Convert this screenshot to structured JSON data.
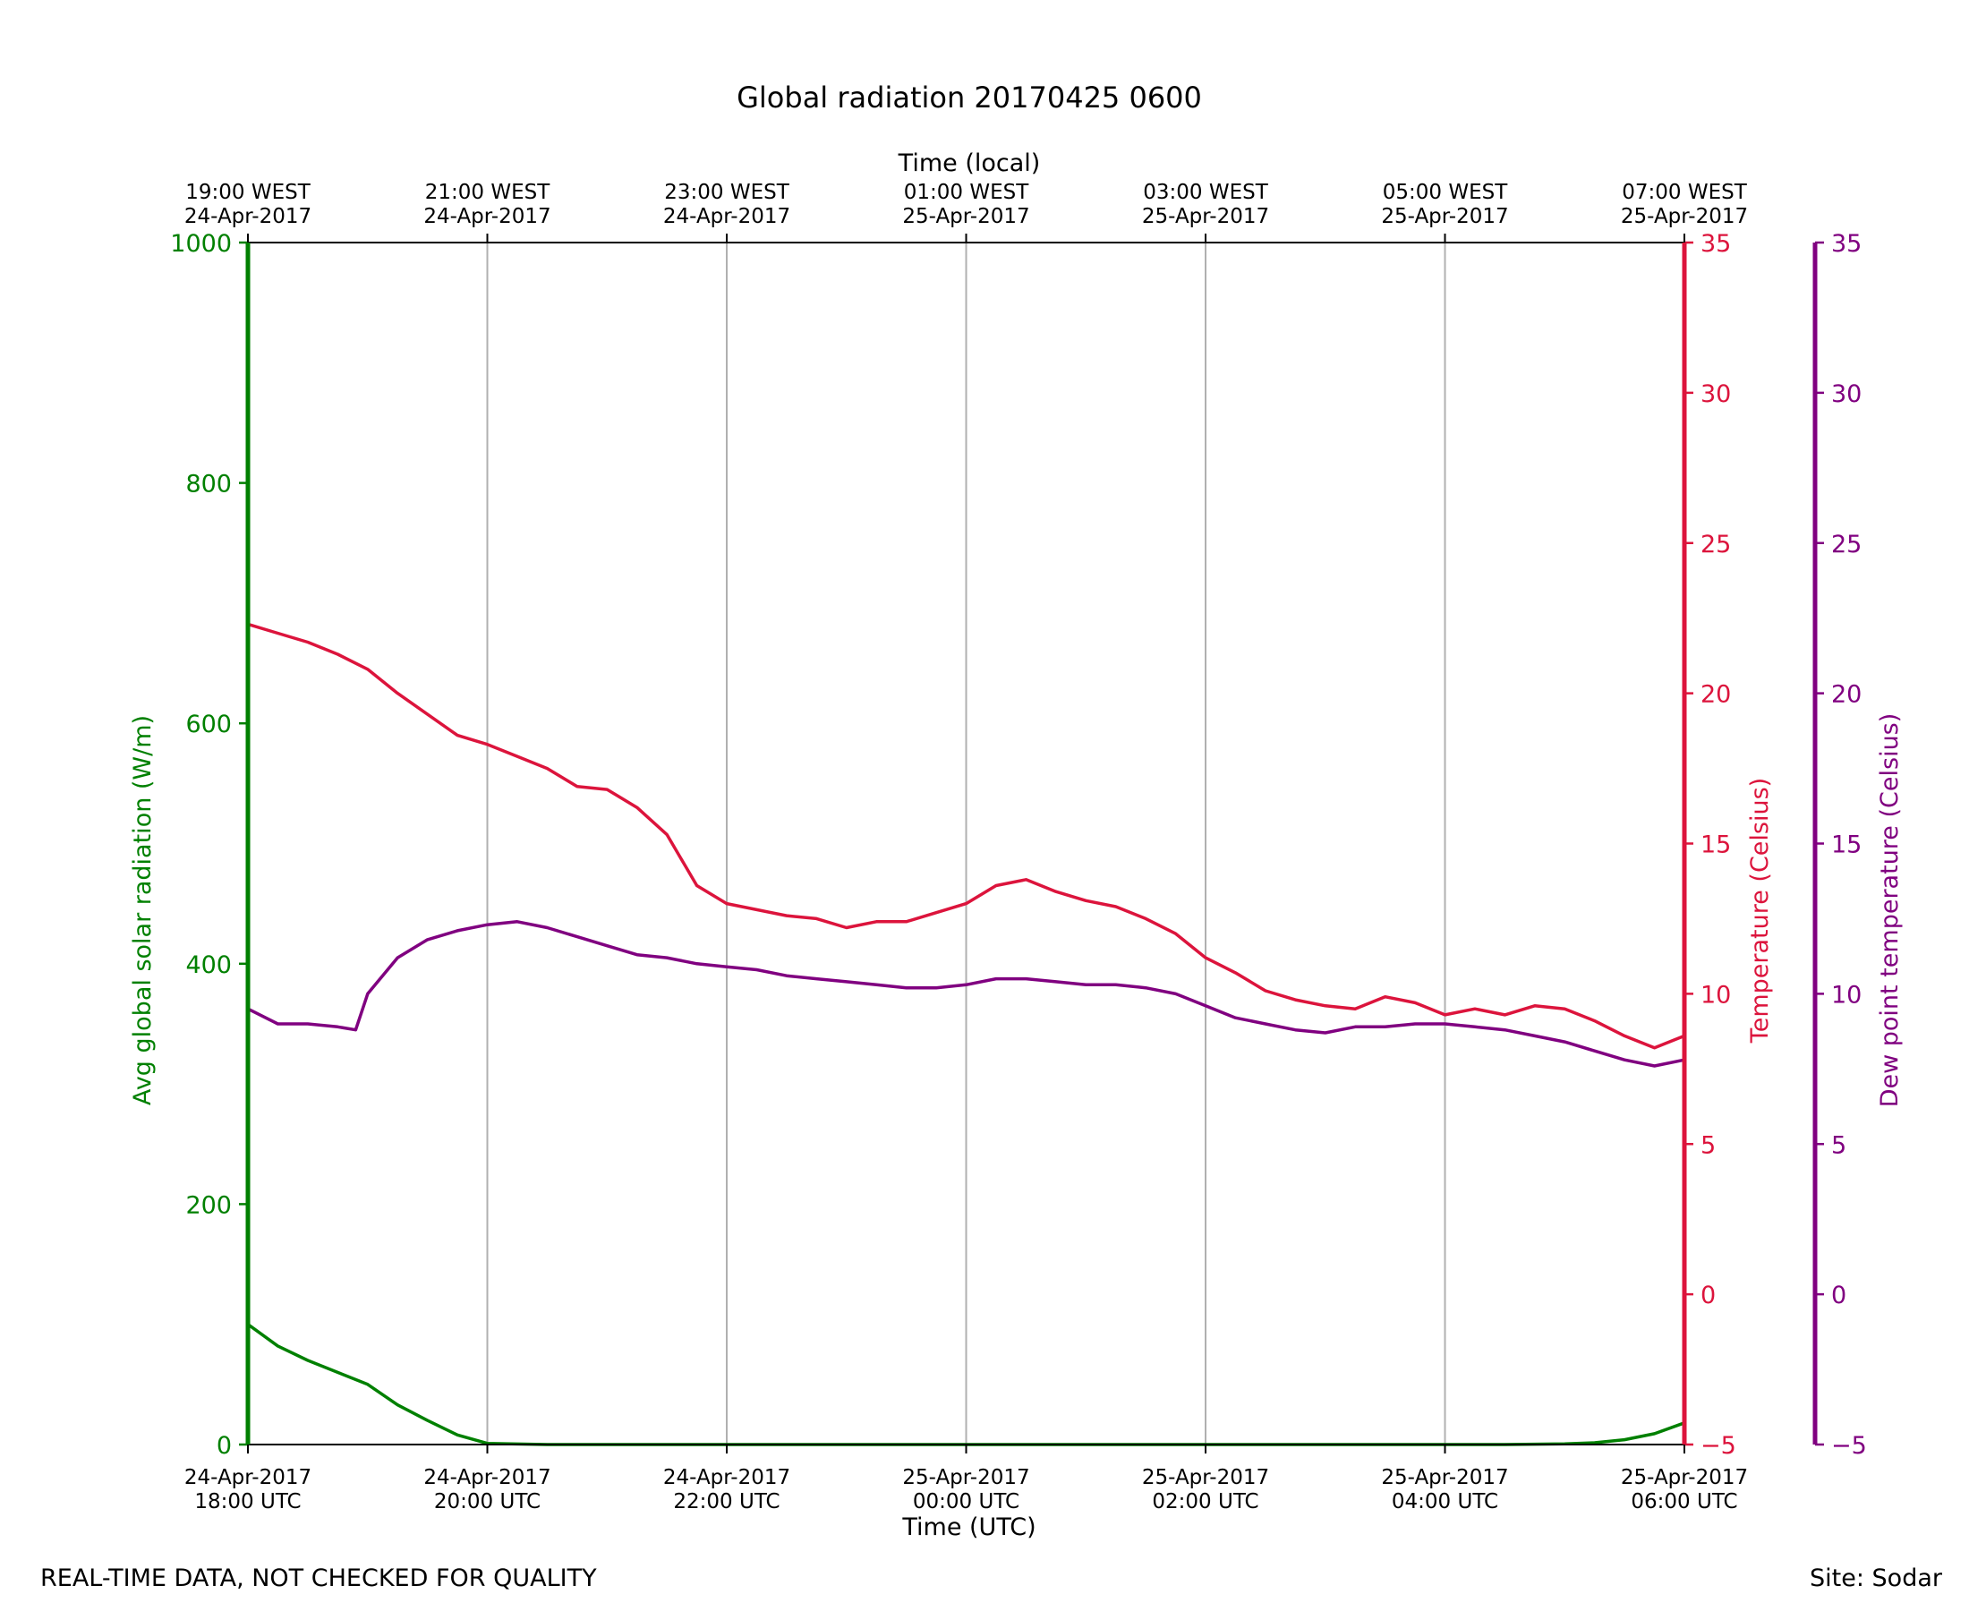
{
  "chart_data": {
    "type": "line",
    "title": "Global radiation 20170425 0600",
    "xlabel_bottom": "Time (UTC)",
    "xlabel_top": "Time (local)",
    "x_range_hours_utc": [
      "24-Apr-2017 18:00",
      "25-Apr-2017 06:00"
    ],
    "bottom_ticks": [
      {
        "date": "24-Apr-2017",
        "time": "18:00 UTC"
      },
      {
        "date": "24-Apr-2017",
        "time": "20:00 UTC"
      },
      {
        "date": "24-Apr-2017",
        "time": "22:00 UTC"
      },
      {
        "date": "25-Apr-2017",
        "time": "00:00 UTC"
      },
      {
        "date": "25-Apr-2017",
        "time": "02:00 UTC"
      },
      {
        "date": "25-Apr-2017",
        "time": "04:00 UTC"
      },
      {
        "date": "25-Apr-2017",
        "time": "06:00 UTC"
      }
    ],
    "top_ticks": [
      {
        "time": "19:00 WEST",
        "date": "24-Apr-2017"
      },
      {
        "time": "21:00 WEST",
        "date": "24-Apr-2017"
      },
      {
        "time": "23:00 WEST",
        "date": "24-Apr-2017"
      },
      {
        "time": "01:00 WEST",
        "date": "25-Apr-2017"
      },
      {
        "time": "03:00 WEST",
        "date": "25-Apr-2017"
      },
      {
        "time": "05:00 WEST",
        "date": "25-Apr-2017"
      },
      {
        "time": "07:00 WEST",
        "date": "25-Apr-2017"
      }
    ],
    "grid": "vertical",
    "axes": {
      "radiation": {
        "label": "Avg global solar radiation (W/m)",
        "range": [
          0,
          1000
        ],
        "ticks": [
          "0",
          "200",
          "400",
          "600",
          "800",
          "1000"
        ],
        "color": "#008000"
      },
      "temperature": {
        "label": "Temperature (Celsius)",
        "range": [
          -5,
          35
        ],
        "ticks": [
          "−5",
          "0",
          "5",
          "10",
          "15",
          "20",
          "25",
          "30",
          "35"
        ],
        "color": "#dc143c"
      },
      "dewpoint": {
        "label": "Dew point temperature (Celsius)",
        "range": [
          -5,
          35
        ],
        "ticks": [
          "−5",
          "0",
          "5",
          "10",
          "15",
          "20",
          "25",
          "30",
          "35"
        ],
        "color": "#800080"
      }
    },
    "series": [
      {
        "axis": "radiation",
        "color": "#008000",
        "x_hours_since_1800utc": [
          0,
          0.25,
          0.5,
          0.75,
          1.0,
          1.25,
          1.5,
          1.75,
          2.0,
          2.5,
          3,
          4,
          5,
          6,
          7,
          8,
          9,
          10,
          10.5,
          11,
          11.25,
          11.5,
          11.75,
          12
        ],
        "values": [
          100,
          82,
          70,
          60,
          50,
          33,
          20,
          8,
          1,
          0,
          0,
          0,
          0,
          0,
          0,
          0,
          0,
          0,
          0,
          0.5,
          1.5,
          4,
          9,
          18
        ]
      },
      {
        "axis": "temperature",
        "color": "#dc143c",
        "x_hours_since_1800utc": [
          0,
          0.25,
          0.5,
          0.75,
          1.0,
          1.25,
          1.5,
          1.75,
          2.0,
          2.25,
          2.5,
          2.75,
          3.0,
          3.25,
          3.5,
          3.75,
          4.0,
          4.25,
          4.5,
          4.75,
          5.0,
          5.25,
          5.5,
          5.75,
          6.0,
          6.25,
          6.5,
          6.75,
          7.0,
          7.25,
          7.5,
          7.75,
          8.0,
          8.25,
          8.5,
          8.75,
          9.0,
          9.25,
          9.5,
          9.75,
          10.0,
          10.25,
          10.5,
          10.75,
          11.0,
          11.25,
          11.5,
          11.75,
          12.0
        ],
        "values": [
          22.3,
          22.0,
          21.7,
          21.3,
          20.8,
          20.0,
          19.3,
          18.6,
          18.3,
          17.9,
          17.5,
          16.9,
          16.8,
          16.2,
          15.3,
          13.6,
          13.0,
          12.8,
          12.6,
          12.5,
          12.2,
          12.4,
          12.4,
          12.7,
          13.0,
          13.6,
          13.8,
          13.4,
          13.1,
          12.9,
          12.5,
          12.0,
          11.2,
          10.7,
          10.1,
          9.8,
          9.6,
          9.5,
          9.9,
          9.7,
          9.3,
          9.5,
          9.3,
          9.6,
          9.5,
          9.1,
          8.6,
          8.2,
          8.6
        ]
      },
      {
        "axis": "dewpoint",
        "color": "#800080",
        "x_hours_since_1800utc": [
          0,
          0.25,
          0.5,
          0.75,
          0.9,
          1.0,
          1.25,
          1.5,
          1.75,
          2.0,
          2.25,
          2.5,
          2.75,
          3.0,
          3.25,
          3.5,
          3.75,
          4.0,
          4.25,
          4.5,
          4.75,
          5.0,
          5.25,
          5.5,
          5.75,
          6.0,
          6.25,
          6.5,
          6.75,
          7.0,
          7.25,
          7.5,
          7.75,
          8.0,
          8.25,
          8.5,
          8.75,
          9.0,
          9.25,
          9.5,
          9.75,
          10.0,
          10.25,
          10.5,
          10.75,
          11.0,
          11.25,
          11.5,
          11.75,
          12.0
        ],
        "values": [
          9.5,
          9.0,
          9.0,
          8.9,
          8.8,
          10.0,
          11.2,
          11.8,
          12.1,
          12.3,
          12.4,
          12.2,
          11.9,
          11.6,
          11.3,
          11.2,
          11.0,
          10.9,
          10.8,
          10.6,
          10.5,
          10.4,
          10.3,
          10.2,
          10.2,
          10.3,
          10.5,
          10.5,
          10.4,
          10.3,
          10.3,
          10.2,
          10.0,
          9.6,
          9.2,
          9.0,
          8.8,
          8.7,
          8.9,
          8.9,
          9.0,
          9.0,
          8.9,
          8.8,
          8.6,
          8.4,
          8.1,
          7.8,
          7.6,
          7.8
        ]
      }
    ]
  },
  "footer": {
    "disclaimer": "REAL-TIME DATA, NOT CHECKED FOR QUALITY",
    "site": "Site: Sodar"
  }
}
